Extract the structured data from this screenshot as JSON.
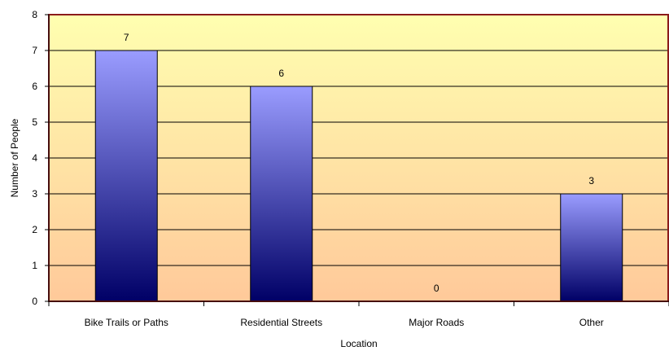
{
  "chart_data": {
    "type": "bar",
    "title": "",
    "xlabel": "Location",
    "ylabel": "Number of People",
    "categories": [
      "Bike Trails or Paths",
      "Residential Streets",
      "Major Roads",
      "Other"
    ],
    "values": [
      7,
      6,
      0,
      3
    ],
    "data_labels": [
      "7",
      "6",
      "0",
      "3"
    ],
    "yticks": [
      "0",
      "1",
      "2",
      "3",
      "4",
      "5",
      "6",
      "7",
      "8"
    ],
    "ylim": [
      0,
      8
    ],
    "grid": true,
    "legend": "none",
    "colors": {
      "plot_bg_top": "#ffffb0",
      "plot_bg_bottom": "#ffc99a",
      "plot_border": "#8b1a1a",
      "bar_top": "#9a9cff",
      "bar_bottom": "#000066",
      "bar_stroke": "#000000",
      "gridline": "#000000"
    }
  }
}
